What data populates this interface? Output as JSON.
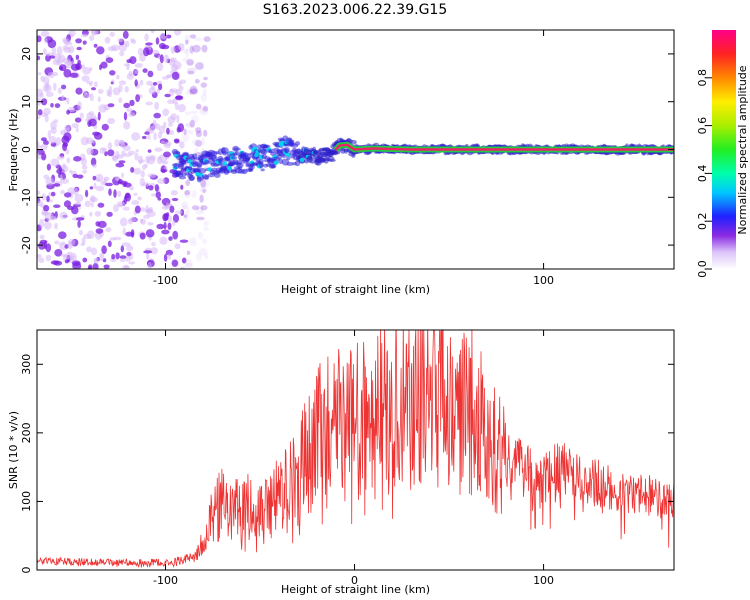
{
  "title": "S163.2023.006.22.39.G15",
  "colors": {
    "snr_line": "#ee3333",
    "ridge": "#ee2266",
    "scatter_dark": "#7a1ee0",
    "scatter_light": "#d7b8f7"
  },
  "chart_data": [
    {
      "id": "spectrogram",
      "type": "heatmap",
      "xlabel": "Height of straight line (km)",
      "ylabel": "Frequency (Hz)",
      "xlim": [
        -168,
        169
      ],
      "ylim": [
        -25,
        25
      ],
      "xticks": [
        -100,
        100
      ],
      "xtick_labels": [
        "-100",
        "100"
      ],
      "yticks": [
        -20,
        -10,
        0,
        10,
        20
      ],
      "ytick_labels": [
        "-20",
        "-10",
        "0",
        "10",
        "20"
      ],
      "grid": false,
      "noise_region_x": [
        -168,
        -90
      ],
      "frequency_track": {
        "x": [
          -95,
          -85,
          -75,
          -65,
          -55,
          -45,
          -38,
          -30,
          -20,
          -12,
          -8,
          -4,
          0,
          10,
          30,
          60,
          100,
          169
        ],
        "y": [
          -3,
          -4,
          -3,
          -2.5,
          -2,
          -1.5,
          0,
          -1,
          -1.5,
          -1,
          0.8,
          1,
          0,
          0.2,
          0,
          0,
          0,
          0
        ]
      },
      "colorbar": {
        "label": "Normalized spectral amplitude",
        "range": [
          0.0,
          1.0
        ],
        "ticks": [
          0.0,
          0.2,
          0.4,
          0.6,
          0.8
        ],
        "tick_labels": [
          "0.0",
          "0.2",
          "0.4",
          "0.6",
          "0.8"
        ]
      }
    },
    {
      "id": "snr",
      "type": "line",
      "xlabel": "Height of straight line (km)",
      "ylabel": "SNR (10 * v/v)",
      "xlim": [
        -168,
        169
      ],
      "ylim": [
        0,
        350
      ],
      "xticks": [
        -100,
        0,
        100
      ],
      "xtick_labels": [
        "-100",
        "0",
        "100"
      ],
      "yticks": [
        0,
        100,
        200,
        300
      ],
      "ytick_labels": [
        "0",
        "100",
        "200",
        "300"
      ],
      "grid": false,
      "series": [
        {
          "x": [
            -168,
            -150,
            -130,
            -110,
            -95,
            -85,
            -80,
            -75,
            -70,
            -65,
            -60,
            -55,
            -50,
            -45,
            -40,
            -35,
            -30,
            -25,
            -20,
            -15,
            -10,
            -5,
            0,
            5,
            10,
            15,
            20,
            25,
            30,
            35,
            40,
            45,
            50,
            55,
            60,
            65,
            70,
            75,
            80,
            85,
            90,
            95,
            100,
            105,
            110,
            115,
            120,
            125,
            130,
            135,
            140,
            145,
            150,
            155,
            160,
            165,
            169
          ],
          "y": [
            14,
            12,
            11,
            11,
            13,
            18,
            40,
            80,
            100,
            90,
            85,
            95,
            80,
            90,
            110,
            120,
            140,
            170,
            200,
            200,
            210,
            220,
            210,
            225,
            230,
            240,
            245,
            250,
            255,
            265,
            270,
            260,
            245,
            240,
            235,
            225,
            205,
            175,
            165,
            155,
            145,
            140,
            135,
            145,
            150,
            145,
            140,
            130,
            125,
            120,
            118,
            115,
            112,
            110,
            105,
            100,
            98
          ]
        }
      ]
    }
  ]
}
